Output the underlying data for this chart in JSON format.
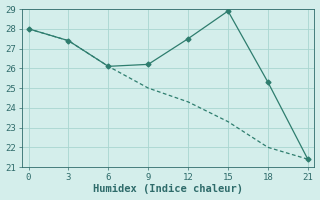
{
  "line1_x": [
    0,
    3,
    6,
    9,
    12,
    15,
    18,
    21
  ],
  "line1_y": [
    28.0,
    27.4,
    26.1,
    26.2,
    27.5,
    28.9,
    25.3,
    21.4
  ],
  "line2_x": [
    0,
    3,
    6,
    9,
    12,
    15,
    18,
    21
  ],
  "line2_y": [
    28.0,
    27.4,
    26.1,
    25.0,
    24.3,
    23.3,
    22.0,
    21.4
  ],
  "line_color": "#2e7d6e",
  "bg_color": "#d4eeeb",
  "grid_color": "#a8d5d0",
  "xlabel": "Humidex (Indice chaleur)",
  "xlim": [
    -0.5,
    21.5
  ],
  "ylim": [
    21,
    29
  ],
  "xticks": [
    0,
    3,
    6,
    9,
    12,
    15,
    18,
    21
  ],
  "yticks": [
    21,
    22,
    23,
    24,
    25,
    26,
    27,
    28,
    29
  ],
  "marker": "D",
  "markersize": 2.5,
  "linewidth": 0.9,
  "font_color": "#2e6b6a",
  "tick_fontsize": 6.5,
  "xlabel_fontsize": 7.5
}
